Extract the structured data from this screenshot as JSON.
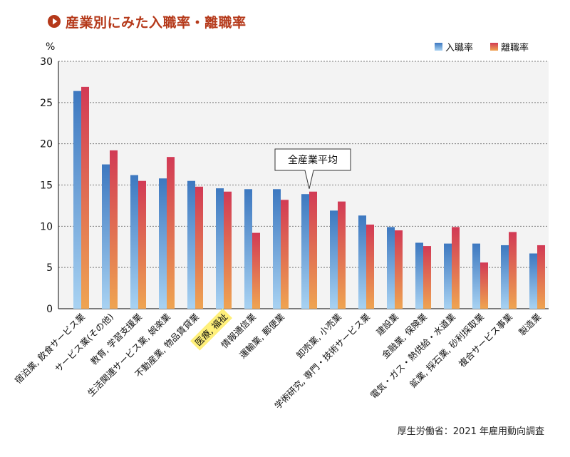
{
  "title": "産業別にみた入職率・離職率",
  "source": "厚生労働省：2021 年雇用動向調査",
  "colors": {
    "accent": "#b5391a",
    "entry_top": "#3d78c0",
    "entry_bottom": "#a8d2f2",
    "exit_top": "#d23a55",
    "exit_bottom": "#efa451",
    "plot_bg": "#f3f3f3",
    "highlight": "#fff07a"
  },
  "chart_data": {
    "type": "bar",
    "ylabel": "%",
    "ylim": [
      0,
      30
    ],
    "yticks": [
      0,
      5,
      10,
      15,
      20,
      25,
      30
    ],
    "grid": true,
    "legend_position": "top-right",
    "categories": [
      "宿泊業, 飲食サービス業",
      "サービス業(その他)",
      "教育, 学習支援業",
      "生活関連サービス業, 娯楽業",
      "不動産業, 物品賃貸業",
      "医療, 福祉",
      "情報通信業",
      "運輸業, 郵便業",
      "",
      "卸売業, 小売業",
      "学術研究, 専門・技術サービス業",
      "建設業",
      "金融業, 保険業",
      "電気・ガス・熱供給・水道業",
      "鉱業, 採石業, 砂利採取業",
      "複合サービス事業",
      "製造業"
    ],
    "highlighted_category": "医療, 福祉",
    "series": [
      {
        "name": "入職率",
        "values": [
          26.4,
          17.5,
          16.2,
          15.8,
          15.5,
          14.6,
          14.5,
          14.5,
          13.9,
          11.9,
          11.3,
          9.9,
          8.0,
          7.9,
          7.9,
          7.7,
          6.7
        ]
      },
      {
        "name": "離職率",
        "values": [
          26.9,
          19.2,
          15.5,
          18.4,
          14.8,
          14.2,
          9.2,
          13.2,
          14.2,
          13.0,
          10.2,
          9.5,
          7.6,
          9.9,
          5.6,
          9.3,
          7.7
        ]
      }
    ],
    "annotation": {
      "text": "全産業平均",
      "category_index": 8
    }
  }
}
